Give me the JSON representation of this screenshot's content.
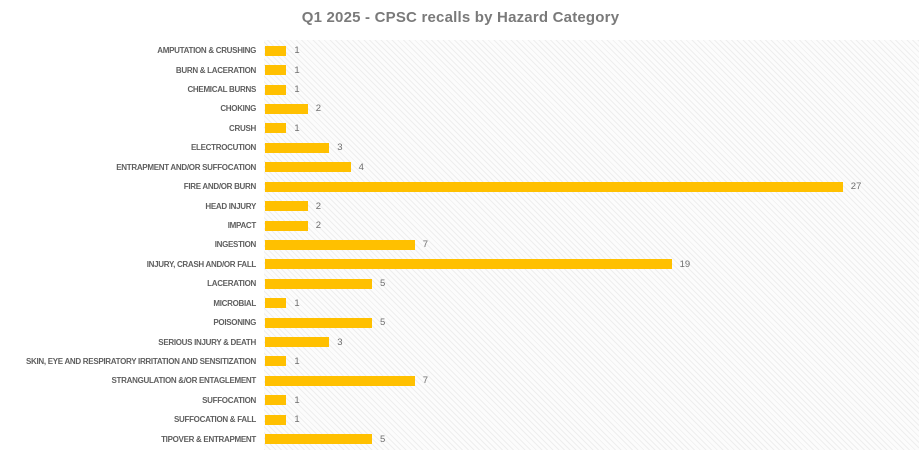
{
  "chart_data": {
    "type": "bar",
    "orientation": "horizontal",
    "title": "Q1 2025 - CPSC recalls by Hazard Category",
    "categories": [
      "AMPUTATION & CRUSHING",
      "BURN & LACERATION",
      "CHEMICAL BURNS",
      "CHOKING",
      "CRUSH",
      "ELECTROCUTION",
      "ENTRAPMENT AND/OR SUFFOCATION",
      "FIRE AND/OR BURN",
      "HEAD INJURY",
      "IMPACT",
      "INGESTION",
      "INJURY, CRASH AND/OR FALL",
      "LACERATION",
      "MICROBIAL",
      "POISONING",
      "SERIOUS INJURY & DEATH",
      "SKIN, EYE AND RESPIRATORY IRRITATION AND SENSITIZATION",
      "STRANGULATION &/OR ENTAGLEMENT",
      "SUFFOCATION",
      "SUFFOCATION & FALL",
      "TIPOVER & ENTRAPMENT"
    ],
    "values": [
      1,
      1,
      1,
      2,
      1,
      3,
      4,
      27,
      2,
      2,
      7,
      19,
      5,
      1,
      5,
      3,
      1,
      7,
      1,
      1,
      5
    ],
    "xlabel": "",
    "ylabel": "",
    "xlim": [
      0,
      30
    ],
    "data_labels": true,
    "legend": false,
    "grid": false,
    "bar_color": "#FFC000",
    "title_color": "#7A7A7A",
    "category_label_color": "#5F5F5F",
    "value_label_color": "#6E6E6E",
    "plot_background": "light-gray-diagonal-hatch"
  }
}
